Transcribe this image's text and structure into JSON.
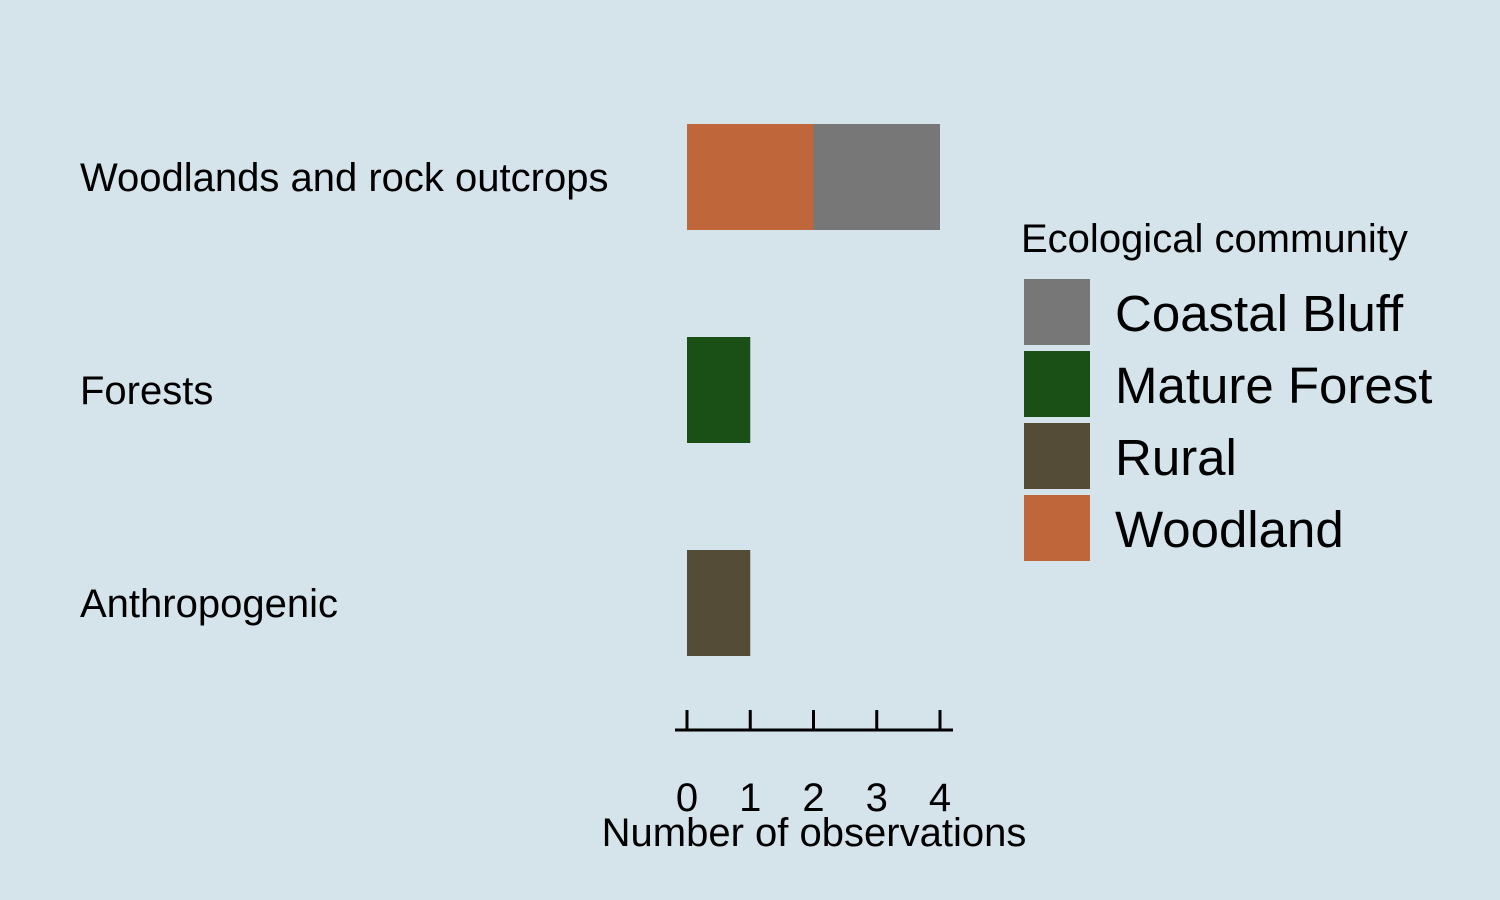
{
  "chart_data": {
    "type": "bar",
    "orientation": "horizontal",
    "stacked": true,
    "categories": [
      "Woodlands and rock outcrops",
      "Forests",
      "Anthropogenic"
    ],
    "series": [
      {
        "name": "Woodland",
        "color": "#bf663b",
        "values": [
          2,
          0,
          0
        ]
      },
      {
        "name": "Coastal Bluff",
        "color": "#777777",
        "values": [
          2,
          0,
          0
        ]
      },
      {
        "name": "Mature Forest",
        "color": "#1a4f16",
        "values": [
          0,
          1,
          0
        ]
      },
      {
        "name": "Rural",
        "color": "#544c37",
        "values": [
          0,
          0,
          1
        ]
      }
    ],
    "xlabel": "Number of observations",
    "xticks": [
      0,
      1,
      2,
      3,
      4
    ],
    "xlim": [
      0,
      4
    ],
    "grid": false,
    "legend": {
      "title": "Ecological community",
      "position": "right",
      "entries": [
        {
          "label": "Coastal Bluff",
          "color": "#777777"
        },
        {
          "label": "Mature Forest",
          "color": "#1a4f16"
        },
        {
          "label": "Rural",
          "color": "#544c37"
        },
        {
          "label": "Woodland",
          "color": "#bf663b"
        }
      ]
    },
    "background": "#d5e3ea"
  }
}
